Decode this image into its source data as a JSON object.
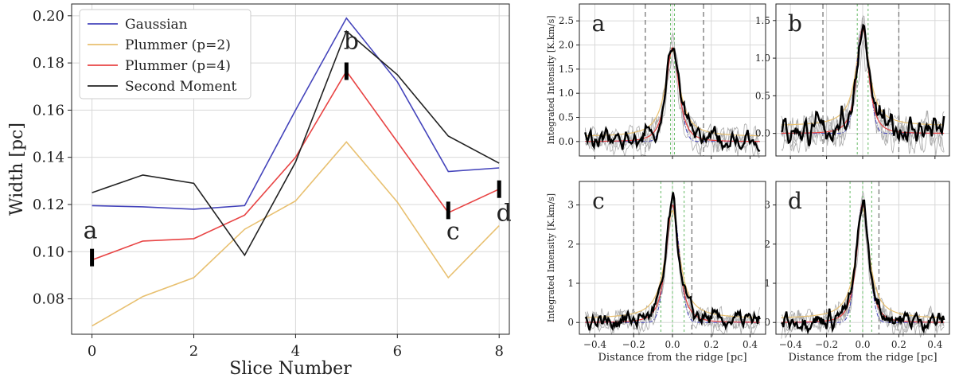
{
  "chart_data": [
    {
      "type": "line",
      "panel": "main",
      "xlabel": "Slice Number",
      "ylabel": "Width [pc]",
      "xlim": [
        -0.4,
        8.2
      ],
      "ylim": [
        0.065,
        0.205
      ],
      "xticks": [
        0,
        2,
        4,
        6,
        8
      ],
      "yticks": [
        0.08,
        0.1,
        0.12,
        0.14,
        0.16,
        0.18,
        0.2
      ],
      "ytick_labels": [
        "0.08",
        "0.10",
        "0.12",
        "0.14",
        "0.16",
        "0.18",
        "0.20"
      ],
      "grid": true,
      "legend_position": "upper-left",
      "x": [
        0,
        1,
        2,
        3,
        4,
        5,
        6,
        7,
        8
      ],
      "series": [
        {
          "name": "Gaussian",
          "color": "#4444bb",
          "values": [
            0.1195,
            0.119,
            0.118,
            0.1195,
            0.16,
            0.199,
            0.172,
            0.134,
            0.1355
          ]
        },
        {
          "name": "Plummer (p=2)",
          "color": "#e8c070",
          "values": [
            0.0685,
            0.081,
            0.089,
            0.1095,
            0.1215,
            0.1465,
            0.121,
            0.089,
            0.111
          ]
        },
        {
          "name": "Plummer (p=4)",
          "color": "#e84444",
          "values": [
            0.0965,
            0.1045,
            0.1055,
            0.1155,
            0.14,
            0.1765,
            0.1465,
            0.1165,
            0.1265
          ]
        },
        {
          "name": "Second Moment",
          "color": "#222222",
          "values": [
            0.125,
            0.1325,
            0.129,
            0.0985,
            0.138,
            0.1935,
            0.175,
            0.149,
            0.1375
          ]
        }
      ],
      "markers": [
        {
          "label": "a",
          "x": 0,
          "y": 0.0975
        },
        {
          "label": "b",
          "x": 5,
          "y": 0.1765
        },
        {
          "label": "c",
          "x": 7,
          "y": 0.1175
        },
        {
          "label": "d",
          "x": 8,
          "y": 0.1265
        }
      ]
    },
    {
      "type": "line",
      "panel": "a",
      "label": "a",
      "ylabel": "Integrated Intensity [K.km/s]",
      "xlim": [
        -0.48,
        0.48
      ],
      "ylim": [
        -0.3,
        2.85
      ],
      "yticks": [
        0.0,
        0.5,
        1.0,
        1.5,
        2.0,
        2.5
      ],
      "ytick_labels": [
        "0.0",
        "0.5",
        "1.0",
        "1.5",
        "2.0",
        "2.5"
      ],
      "xticks": [
        -0.4,
        -0.2,
        0.0,
        0.2,
        0.4
      ],
      "peak": 1.95,
      "gray_vlines": [
        -0.14,
        0.16
      ],
      "green_vlines": [
        -0.01,
        0.01
      ],
      "noise": 0.2
    },
    {
      "type": "line",
      "panel": "b",
      "label": "b",
      "xlim": [
        -0.48,
        0.48
      ],
      "ylim": [
        -0.3,
        1.72
      ],
      "yticks": [
        0.0,
        0.5,
        1.0,
        1.5
      ],
      "ytick_labels": [
        "0.0",
        "0.5",
        "1.0",
        "1.5"
      ],
      "xticks": [
        -0.4,
        -0.2,
        0.0,
        0.2,
        0.4
      ],
      "peak": 1.4,
      "gray_vlines": [
        -0.22,
        0.2
      ],
      "green_vlines": [
        -0.03,
        0.03
      ],
      "noise": 0.17
    },
    {
      "type": "line",
      "panel": "c",
      "label": "c",
      "ylabel": "Integrated Intensity [K.km/s]",
      "xlabel": "Distance from the ridge [pc]",
      "xlim": [
        -0.48,
        0.48
      ],
      "ylim": [
        -0.3,
        3.6
      ],
      "yticks": [
        0,
        1,
        2,
        3
      ],
      "ytick_labels": [
        "0",
        "1",
        "2",
        "3"
      ],
      "xticks": [
        -0.4,
        -0.2,
        0.0,
        0.2,
        0.4
      ],
      "xtick_labels": [
        "−0.4",
        "−0.2",
        "0.0",
        "0.2",
        "0.4"
      ],
      "peak": 3.0,
      "gray_vlines": [
        -0.2,
        0.1
      ],
      "green_vlines": [
        -0.06,
        0.0,
        0.06
      ],
      "noise": 0.22
    },
    {
      "type": "line",
      "panel": "d",
      "label": "d",
      "xlabel": "Distance from the ridge [pc]",
      "xlim": [
        -0.48,
        0.48
      ],
      "ylim": [
        -0.3,
        3.6
      ],
      "yticks": [
        0,
        1,
        2,
        3
      ],
      "ytick_labels": [
        "0",
        "1",
        "2",
        "3"
      ],
      "xticks": [
        -0.4,
        -0.2,
        0.0,
        0.2,
        0.4
      ],
      "xtick_labels": [
        "−0.4",
        "−0.2",
        "0.0",
        "0.2",
        "0.4"
      ],
      "peak": 3.05,
      "gray_vlines": [
        -0.2,
        0.09
      ],
      "green_vlines": [
        -0.07,
        0.0,
        0.05
      ],
      "noise": 0.22
    }
  ],
  "colors": {
    "gaussian": "#4444bb",
    "plummer2": "#e8c070",
    "plummer4": "#e84444",
    "second_moment": "#222222",
    "profile": "#000000",
    "profile_individual": "#aaaaaa",
    "vline_gray": "#777777",
    "vline_green": "#66bb66"
  }
}
